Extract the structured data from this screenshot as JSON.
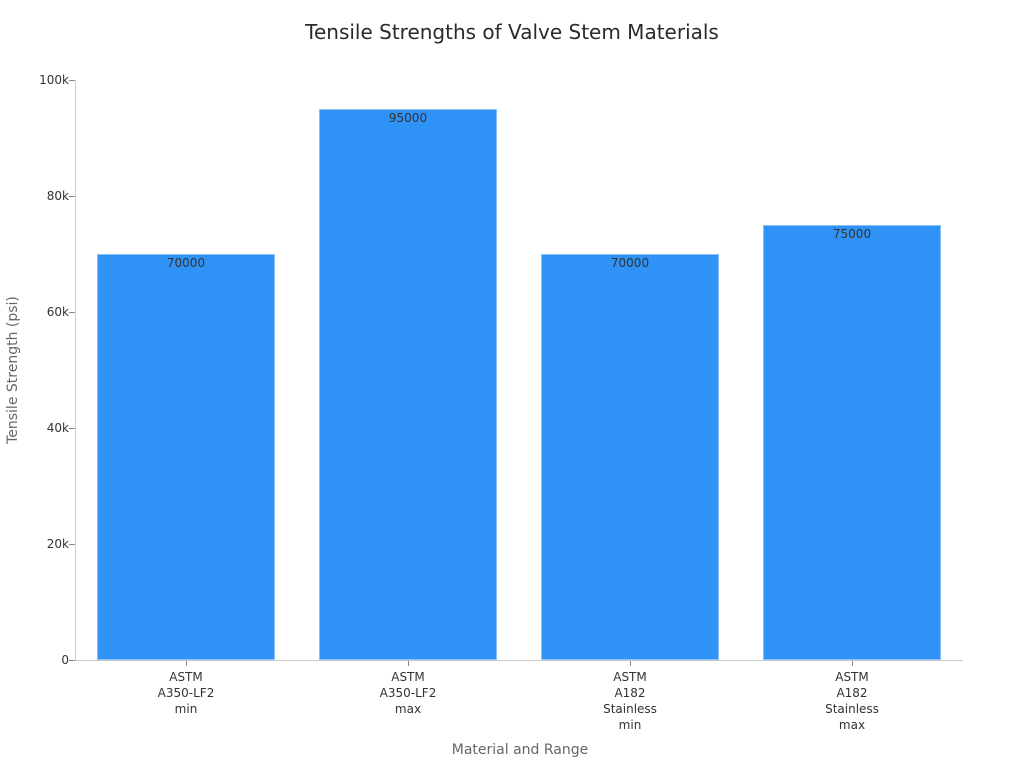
{
  "chart_data": {
    "type": "bar",
    "title": "Tensile Strengths of Valve Stem Materials",
    "xlabel": "Material and Range",
    "ylabel": "Tensile Strength (psi)",
    "categories": [
      "ASTM\nA350-LF2\nmin",
      "ASTM\nA350-LF2\nmax",
      "ASTM\nA182\nStainless\nmin",
      "ASTM\nA182\nStainless\nmax"
    ],
    "values": [
      70000,
      95000,
      70000,
      75000
    ],
    "value_labels": [
      "70000",
      "95000",
      "70000",
      "75000"
    ],
    "ylim": [
      0,
      100000
    ],
    "yticks": [
      0,
      20000,
      40000,
      60000,
      80000,
      100000
    ],
    "ytick_labels": [
      "0",
      "20k",
      "40k",
      "60k",
      "80k",
      "100k"
    ],
    "grid": false,
    "legend": null,
    "bar_color": "#2f92f7"
  }
}
